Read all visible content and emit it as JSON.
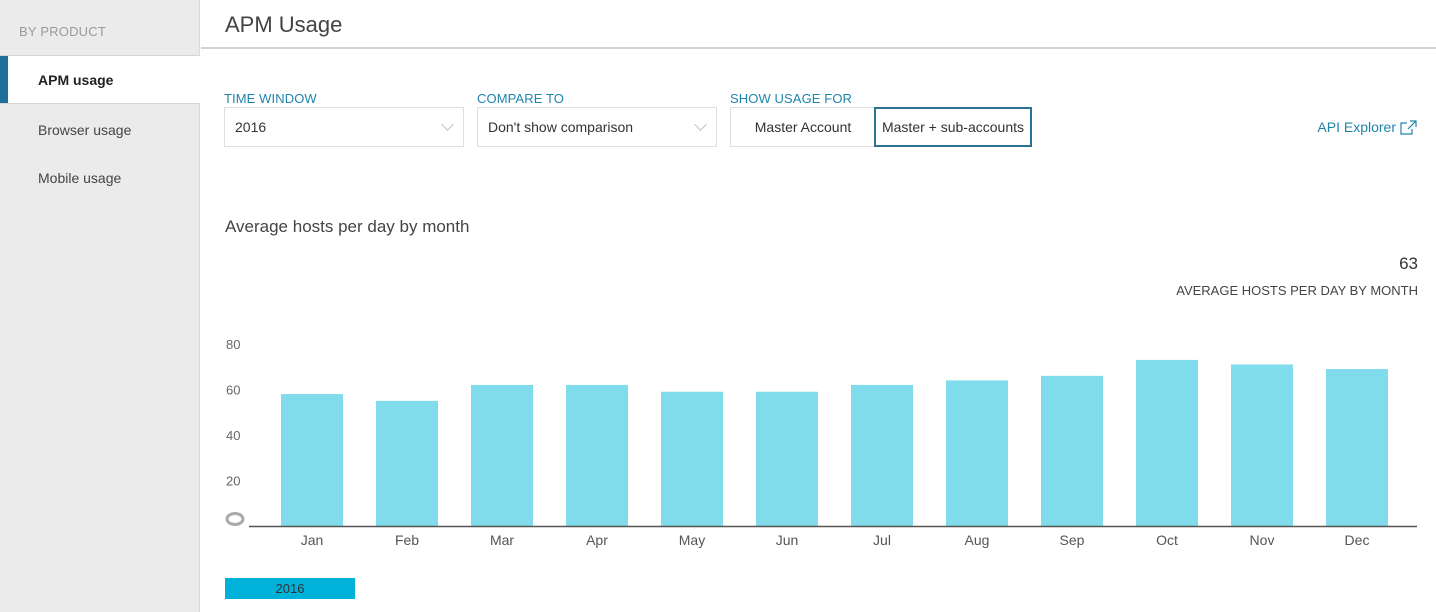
{
  "sidebar": {
    "heading": "BY PRODUCT",
    "items": [
      {
        "label": "APM usage",
        "active": true
      },
      {
        "label": "Browser usage",
        "active": false
      },
      {
        "label": "Mobile usage",
        "active": false
      }
    ]
  },
  "header": {
    "title": "APM Usage"
  },
  "controls": {
    "time_window": {
      "label": "TIME WINDOW",
      "value": "2016"
    },
    "compare_to": {
      "label": "COMPARE TO",
      "value": "Don't show comparison"
    },
    "show_usage_for": {
      "label": "SHOW USAGE FOR",
      "options": [
        "Master Account",
        "Master + sub-accounts"
      ],
      "selected": "Master + sub-accounts"
    },
    "api_explorer": "API Explorer"
  },
  "summary": {
    "chart_heading": "Average hosts per day by month",
    "value": "63",
    "label": "AVERAGE HOSTS PER DAY BY MONTH"
  },
  "colors": {
    "bar": "#80dbeb",
    "legend": "#00b2d9",
    "accent": "#1f84ad",
    "selected_border": "#2b7295"
  },
  "chart_data": {
    "type": "bar",
    "categories": [
      "Jan",
      "Feb",
      "Mar",
      "Apr",
      "May",
      "Jun",
      "Jul",
      "Aug",
      "Sep",
      "Oct",
      "Nov",
      "Dec"
    ],
    "series": [
      {
        "name": "2016",
        "values": [
          58,
          55,
          62,
          62,
          59,
          59,
          62,
          64,
          66,
          73,
          71,
          69
        ]
      }
    ],
    "yticks": [
      "20",
      "40",
      "60",
      "80"
    ],
    "ylim": [
      0,
      80
    ],
    "grid": false,
    "legend": "bottom-left"
  }
}
